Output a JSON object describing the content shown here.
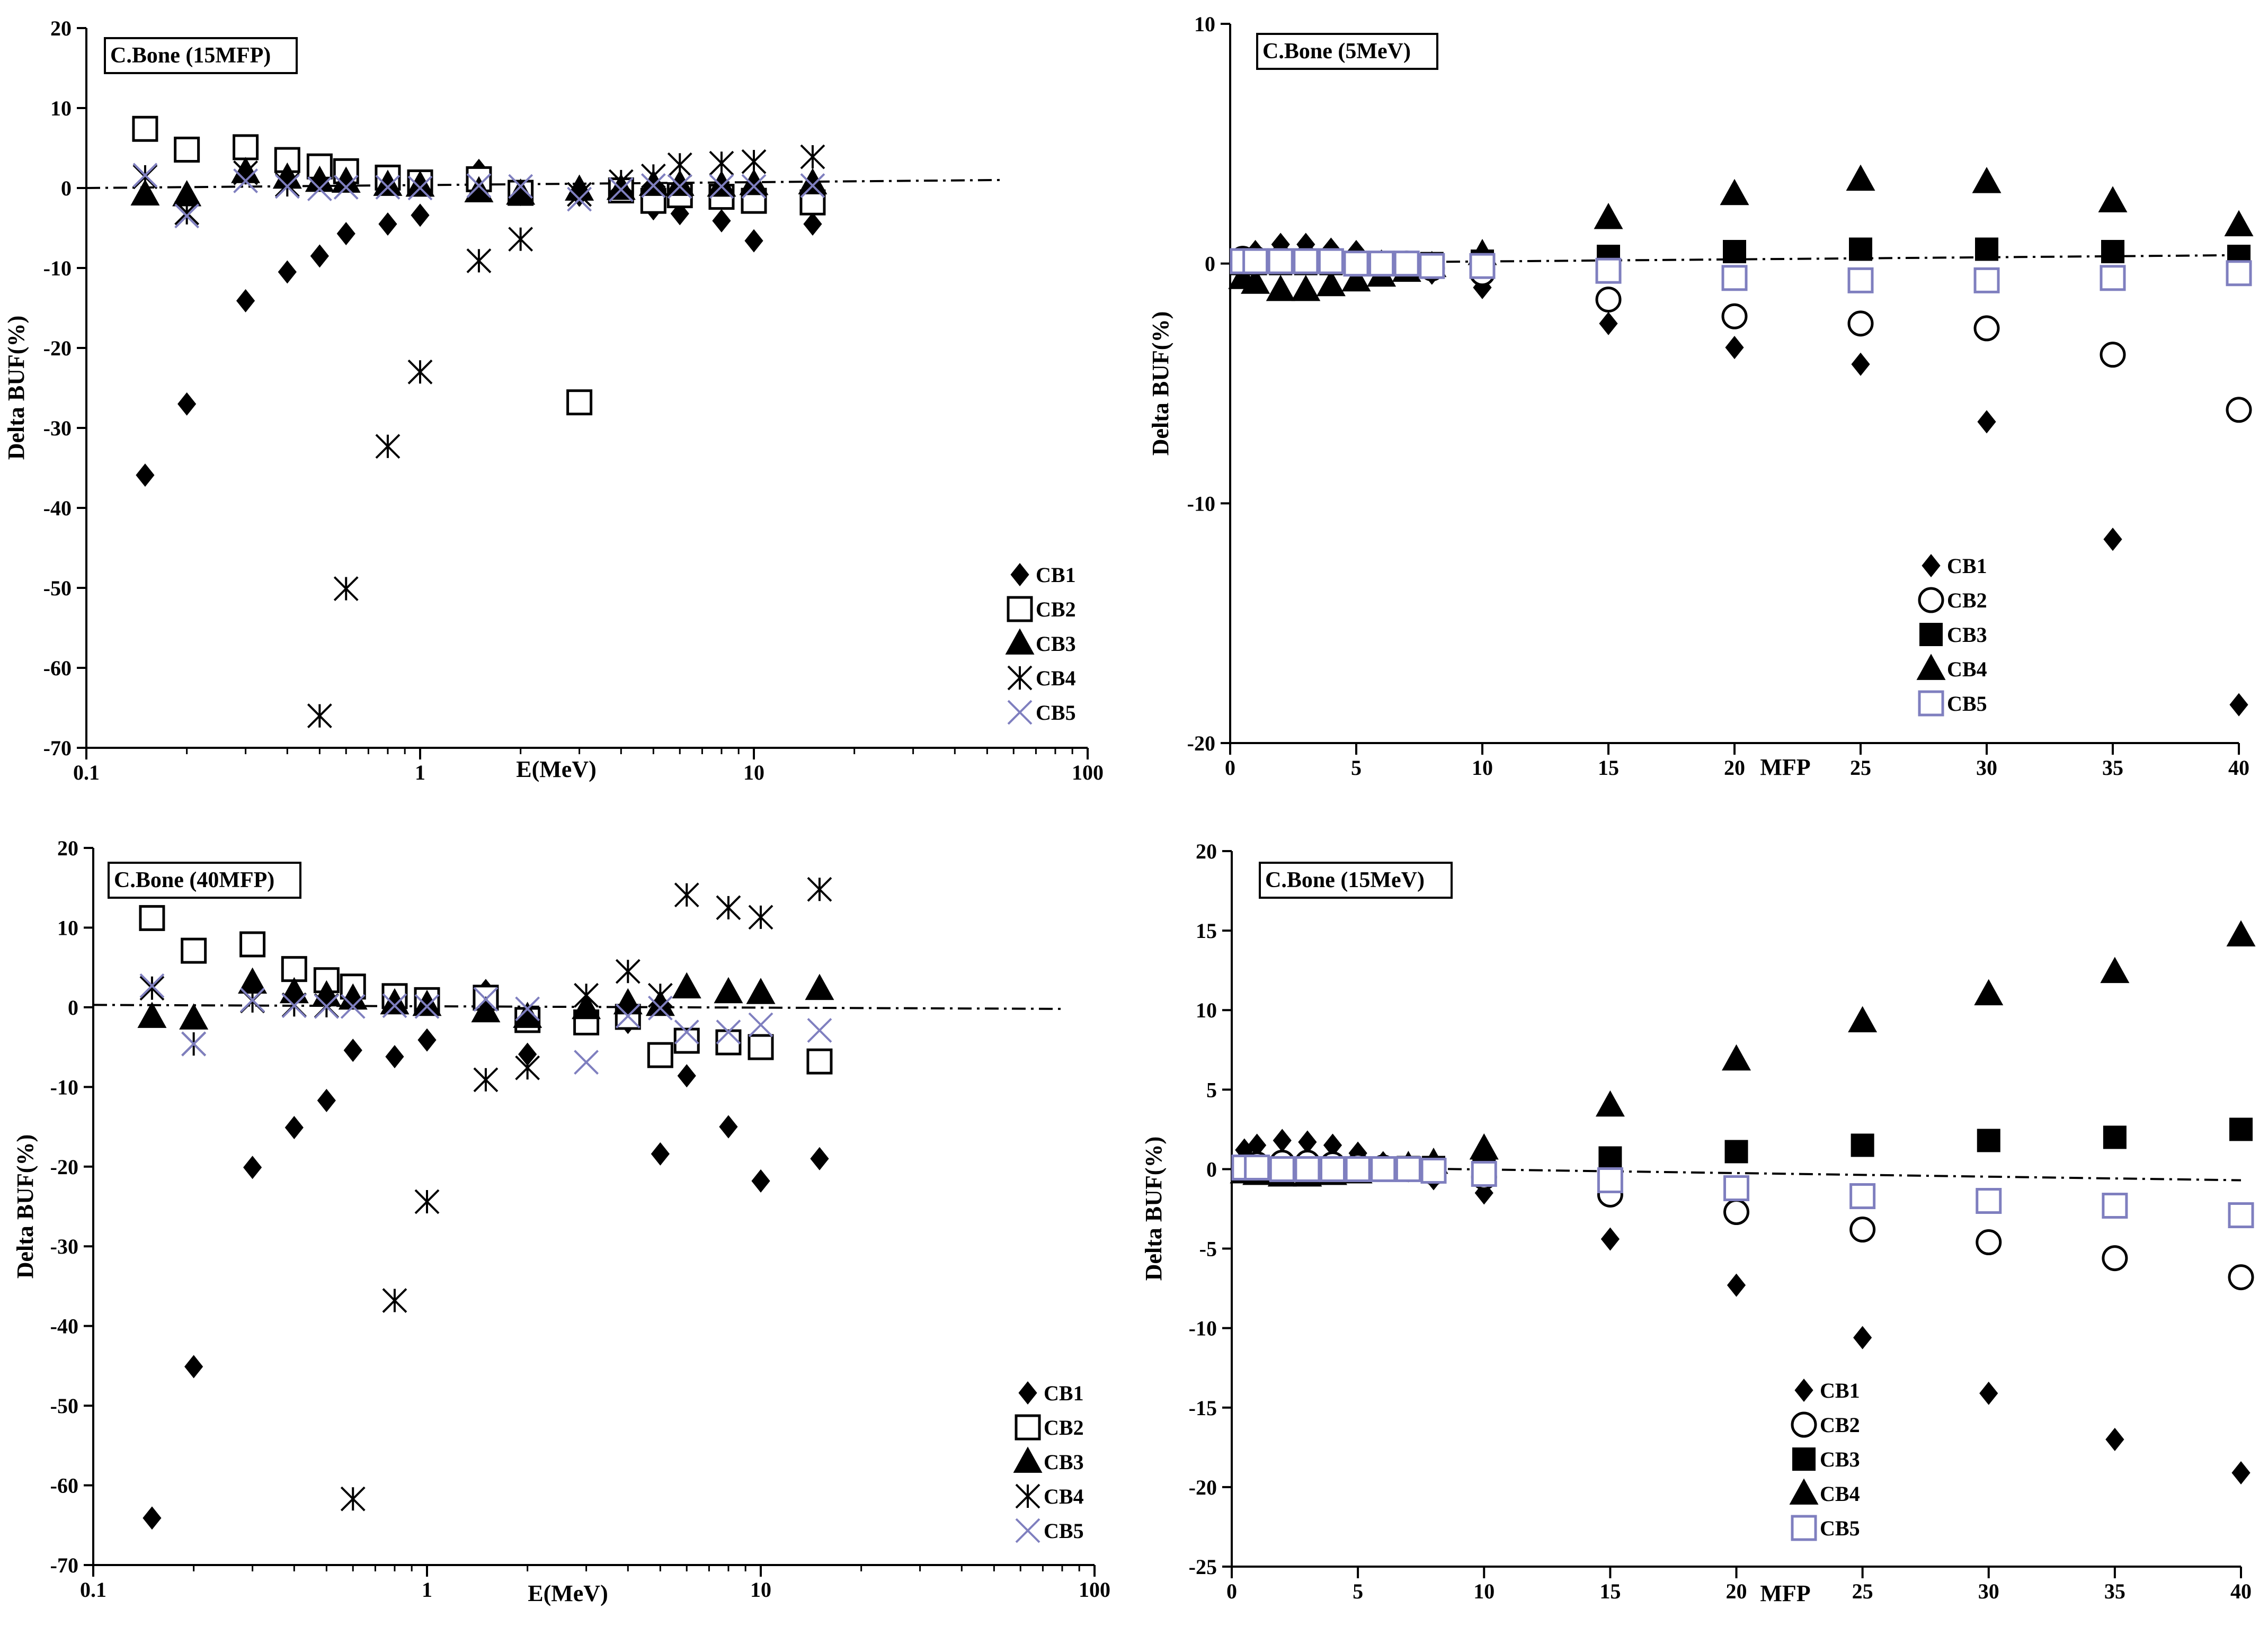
{
  "charts": {
    "style": {
      "series_colors": {
        "CB1": "#000000",
        "CB2": "#000000",
        "CB3": "#000000",
        "CB4": "#000000",
        "CB5": "#7f7fbf"
      },
      "background": "#ffffff"
    }
  },
  "chart_data": [
    {
      "type": "scatter",
      "title": "C.Bone (15MFP)",
      "xlabel": "E(MeV)",
      "ylabel": "Delta BUF(%)",
      "xscale": "log",
      "xlim": [
        0.1,
        100
      ],
      "ylim": [
        -70,
        20
      ],
      "xticks": [
        0.1,
        1,
        10,
        100
      ],
      "xtick_labels": [
        "0.1",
        "1",
        "10",
        "100"
      ],
      "yticks": [
        20,
        10,
        0,
        -10,
        -20,
        -30,
        -40,
        -50,
        -60,
        -70
      ],
      "ytick_labels": [
        "20",
        "10",
        "0",
        "-10",
        "-20",
        "-30",
        "-40",
        "-50",
        "-60",
        "-70"
      ],
      "legend_position": "right",
      "grid": false,
      "reference_line": {
        "x": [
          0.1,
          55
        ],
        "y": [
          0,
          1.0
        ]
      },
      "x": [
        0.15,
        0.2,
        0.3,
        0.4,
        0.5,
        0.6,
        0.8,
        1,
        1.5,
        2,
        3,
        4,
        5,
        6,
        8,
        10,
        15
      ],
      "series": [
        {
          "name": "CB1",
          "marker": "diamond",
          "values": [
            -35.9,
            -27.0,
            -14.1,
            -10.5,
            -8.5,
            -5.7,
            -4.5,
            -3.4,
            2.2,
            -0.8,
            -0.9,
            -0.4,
            -2.6,
            -3.2,
            -4.1,
            -6.6,
            -4.5
          ]
        },
        {
          "name": "CB2",
          "marker": "square-open",
          "values": [
            7.4,
            4.8,
            5.1,
            3.5,
            2.7,
            2.1,
            1.3,
            0.7,
            1.1,
            -0.6,
            -26.8,
            -0.3,
            -1.6,
            -0.9,
            -1.1,
            -1.6,
            -1.8
          ]
        },
        {
          "name": "CB3",
          "marker": "triangle",
          "values": [
            -0.8,
            -0.9,
            2.0,
            1.3,
            0.9,
            0.8,
            0.4,
            0.3,
            -0.4,
            -0.7,
            -0.2,
            -0.1,
            0.4,
            0.4,
            0.3,
            0.5,
            0.6
          ]
        },
        {
          "name": "CB4",
          "marker": "asterisk",
          "values": [
            1.4,
            -3.1,
            1.9,
            0.4,
            -66.0,
            -50.1,
            -32.3,
            -23.0,
            -9.1,
            -6.4,
            -0.8,
            0.8,
            1.5,
            2.9,
            3.1,
            3.3,
            3.9
          ]
        },
        {
          "name": "CB5",
          "marker": "x",
          "values": [
            1.6,
            -3.5,
            0.9,
            0.2,
            -0.1,
            0.1,
            0.1,
            0.0,
            0.3,
            0.2,
            -1.4,
            -0.2,
            0.3,
            0.2,
            0.2,
            0.2,
            0.3
          ]
        }
      ]
    },
    {
      "type": "scatter",
      "title": "C.Bone (5MeV)",
      "xlabel": "MFP",
      "ylabel": "Delta BUF(%)",
      "xscale": "linear",
      "xlim": [
        0,
        40
      ],
      "ylim": [
        -20,
        10
      ],
      "xticks": [
        0,
        5,
        10,
        15,
        20,
        25,
        30,
        35,
        40
      ],
      "xtick_labels": [
        "0",
        "5",
        "10",
        "15",
        "20",
        "25",
        "30",
        "35",
        "40"
      ],
      "yticks": [
        10,
        0,
        -10,
        -20
      ],
      "ytick_labels": [
        "10",
        "0",
        "-10",
        "-20"
      ],
      "legend_position": "center",
      "grid": false,
      "reference_line": {
        "x": [
          0,
          40
        ],
        "y": [
          0,
          0.35
        ]
      },
      "x": [
        0.5,
        1,
        2,
        3,
        4,
        5,
        6,
        7,
        8,
        10,
        15,
        20,
        25,
        30,
        35,
        40
      ],
      "series": [
        {
          "name": "CB1",
          "marker": "diamond",
          "values": [
            0.2,
            0.5,
            0.8,
            0.8,
            0.6,
            0.5,
            0.1,
            -0.1,
            -0.4,
            -1.0,
            -2.5,
            -3.5,
            -4.2,
            -6.6,
            -11.5,
            -18.4
          ]
        },
        {
          "name": "CB2",
          "marker": "circle-open",
          "values": [
            0.2,
            0.2,
            0.2,
            0.2,
            0.1,
            0.0,
            -0.1,
            0.0,
            -0.2,
            -0.4,
            -1.5,
            -2.2,
            -2.5,
            -2.7,
            -3.8,
            -6.1
          ]
        },
        {
          "name": "CB3",
          "marker": "square",
          "values": [
            0.0,
            0.0,
            0.0,
            0.0,
            0.0,
            0.0,
            0.0,
            0.0,
            0.0,
            0.1,
            0.3,
            0.5,
            0.6,
            0.6,
            0.5,
            0.3
          ]
        },
        {
          "name": "CB4",
          "marker": "triangle",
          "values": [
            -0.6,
            -0.8,
            -1.1,
            -1.1,
            -0.9,
            -0.7,
            -0.5,
            -0.3,
            -0.1,
            0.4,
            1.9,
            2.9,
            3.5,
            3.4,
            2.6,
            1.6
          ]
        },
        {
          "name": "CB5",
          "marker": "square-open",
          "values": [
            0.1,
            0.1,
            0.1,
            0.1,
            0.1,
            0.0,
            0.0,
            0.0,
            -0.1,
            -0.1,
            -0.3,
            -0.6,
            -0.7,
            -0.7,
            -0.6,
            -0.4
          ]
        }
      ]
    },
    {
      "type": "scatter",
      "title": "C.Bone (40MFP)",
      "xlabel": "E(MeV)",
      "ylabel": "Delta BUF(%)",
      "xscale": "log",
      "xlim": [
        0.1,
        100
      ],
      "ylim": [
        -70,
        20
      ],
      "xticks": [
        0.1,
        1,
        10,
        100
      ],
      "xtick_labels": [
        "0.1",
        "1",
        "10",
        "100"
      ],
      "yticks": [
        20,
        10,
        0,
        -10,
        -20,
        -30,
        -40,
        -50,
        -60,
        -70
      ],
      "ytick_labels": [
        "20",
        "10",
        "0",
        "-10",
        "-20",
        "-30",
        "-40",
        "-50",
        "-60",
        "-70"
      ],
      "legend_position": "right",
      "grid": false,
      "reference_line": {
        "x": [
          0.1,
          80
        ],
        "y": [
          0.3,
          -0.2
        ]
      },
      "x": [
        0.15,
        0.2,
        0.3,
        0.4,
        0.5,
        0.6,
        0.8,
        1,
        1.5,
        2,
        3,
        4,
        5,
        6,
        8,
        10,
        15
      ],
      "series": [
        {
          "name": "CB1",
          "marker": "diamond",
          "values": [
            -64.1,
            -45.1,
            -20.1,
            -15.1,
            -11.7,
            -5.4,
            -6.2,
            -4.1,
            2.1,
            -5.9,
            -1.9,
            -1.9,
            -18.4,
            -8.6,
            -15.0,
            -21.8,
            -19.0
          ]
        },
        {
          "name": "CB2",
          "marker": "square-open",
          "values": [
            11.2,
            7.1,
            7.9,
            4.8,
            3.4,
            2.6,
            1.4,
            0.9,
            1.2,
            -1.6,
            -1.9,
            -1.2,
            -6.0,
            -4.2,
            -4.4,
            -5.0,
            -6.8
          ]
        },
        {
          "name": "CB3",
          "marker": "triangle",
          "values": [
            -1.2,
            -1.4,
            3.1,
            1.9,
            1.5,
            1.1,
            0.5,
            0.3,
            -0.5,
            -1.2,
            -0.1,
            0.5,
            0.3,
            2.5,
            1.9,
            1.8,
            2.3
          ]
        },
        {
          "name": "CB4",
          "marker": "asterisk",
          "values": [
            2.4,
            -4.6,
            0.8,
            0.3,
            0.2,
            -61.7,
            -36.8,
            -24.4,
            -9.1,
            -7.6,
            1.5,
            4.5,
            1.5,
            14.1,
            12.5,
            11.3,
            14.8
          ]
        },
        {
          "name": "CB5",
          "marker": "x",
          "values": [
            2.7,
            -4.6,
            0.9,
            0.2,
            0.1,
            0.1,
            0.2,
            0.1,
            1.0,
            -0.2,
            -6.9,
            -1.1,
            -0.1,
            -3.1,
            -3.1,
            -2.2,
            -2.9
          ]
        }
      ]
    },
    {
      "type": "scatter",
      "title": "C.Bone (15MeV)",
      "xlabel": "MFP",
      "ylabel": "Delta BUF(%)",
      "xscale": "linear",
      "xlim": [
        0,
        40
      ],
      "ylim": [
        -25,
        20
      ],
      "xticks": [
        0,
        5,
        10,
        15,
        20,
        25,
        30,
        35,
        40
      ],
      "xtick_labels": [
        "0",
        "5",
        "10",
        "15",
        "20",
        "25",
        "30",
        "35",
        "40"
      ],
      "yticks": [
        20,
        15,
        10,
        5,
        0,
        -5,
        -10,
        -15,
        -20,
        -25
      ],
      "ytick_labels": [
        "20",
        "15",
        "10",
        "5",
        "0",
        "-5",
        "-10",
        "-15",
        "-20",
        "-25"
      ],
      "legend_position": "bottom-center",
      "grid": false,
      "reference_line": {
        "x": [
          0,
          40
        ],
        "y": [
          0.2,
          -0.7
        ]
      },
      "x": [
        0.5,
        1,
        2,
        3,
        4,
        5,
        6,
        7,
        8,
        10,
        15,
        20,
        25,
        30,
        35,
        40
      ],
      "series": [
        {
          "name": "CB1",
          "marker": "diamond",
          "values": [
            1.2,
            1.5,
            1.8,
            1.7,
            1.5,
            1.0,
            0.4,
            -0.1,
            -0.6,
            -1.5,
            -4.4,
            -7.3,
            -10.6,
            -14.1,
            -17.0,
            -19.1
          ]
        },
        {
          "name": "CB2",
          "marker": "circle-open",
          "values": [
            0.2,
            0.3,
            0.4,
            0.4,
            0.3,
            0.2,
            0.1,
            0.0,
            -0.2,
            -0.5,
            -1.6,
            -2.7,
            -3.8,
            -4.6,
            -5.6,
            -6.8
          ]
        },
        {
          "name": "CB3",
          "marker": "square",
          "values": [
            0.0,
            -0.1,
            -0.1,
            -0.1,
            -0.1,
            0.0,
            0.0,
            0.1,
            0.1,
            0.2,
            0.7,
            1.1,
            1.5,
            1.8,
            2.0,
            2.5
          ]
        },
        {
          "name": "CB4",
          "marker": "triangle",
          "values": [
            -0.2,
            -0.3,
            -0.4,
            -0.4,
            -0.3,
            -0.2,
            0.0,
            0.2,
            0.4,
            1.3,
            4.0,
            6.9,
            9.3,
            11.0,
            12.4,
            14.7
          ]
        },
        {
          "name": "CB5",
          "marker": "square-open",
          "values": [
            0.1,
            0.1,
            0.0,
            0.0,
            0.0,
            0.0,
            0.0,
            0.0,
            -0.1,
            -0.3,
            -0.7,
            -1.2,
            -1.7,
            -2.0,
            -2.3,
            -2.9
          ]
        }
      ]
    }
  ]
}
